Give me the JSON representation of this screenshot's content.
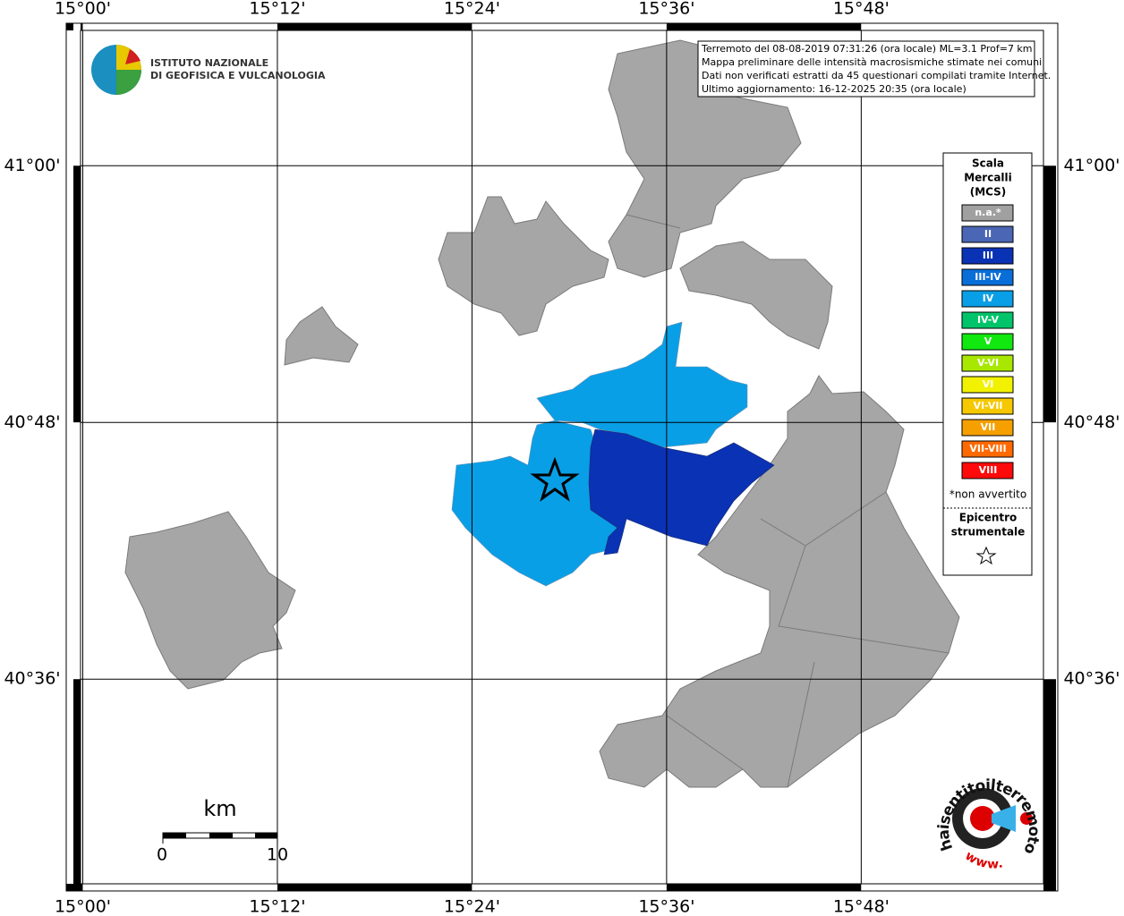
{
  "grid": {
    "xlim": [
      14.983,
      16.002
    ],
    "ylim": [
      40.435,
      41.111
    ],
    "longitudes": [
      {
        "value": 15.0,
        "label": "15°00'"
      },
      {
        "value": 15.2,
        "label": "15°12'"
      },
      {
        "value": 15.4,
        "label": "15°24'"
      },
      {
        "value": 15.6,
        "label": "15°36'"
      },
      {
        "value": 15.8,
        "label": "15°48'"
      }
    ],
    "latitudes": [
      {
        "value": 41.0,
        "label": "41°00'"
      },
      {
        "value": 40.8,
        "label": "40°48'"
      },
      {
        "value": 40.6,
        "label": "40°36'"
      }
    ]
  },
  "info_box": {
    "lines": [
      "Terremoto del 08-08-2019 07:31:26 (ora locale) ML=3.1 Prof=7 km",
      "Mappa preliminare delle intensità macrosismiche stimate nei comuni",
      "Dati non verificati estratti da 45 questionari compilati tramite Internet.",
      "Ultimo aggiornamento: 16-12-2025 20:35 (ora locale)"
    ]
  },
  "logo_ingv": {
    "line1": "ISTITUTO NAZIONALE",
    "line2": "DI GEOFISICA E VULCANOLOGIA"
  },
  "legend": {
    "title_lines": [
      "Scala",
      "Mercalli",
      "(MCS)"
    ],
    "items": [
      {
        "label": "n.a.*",
        "color": "#a0a0a0"
      },
      {
        "label": "II",
        "color": "#4a66b4"
      },
      {
        "label": "III",
        "color": "#0a32b4"
      },
      {
        "label": "III-IV",
        "color": "#0a6ed8"
      },
      {
        "label": "IV",
        "color": "#099fe6"
      },
      {
        "label": "IV-V",
        "color": "#00c46a"
      },
      {
        "label": "V",
        "color": "#10e810"
      },
      {
        "label": "V-VI",
        "color": "#a8e800"
      },
      {
        "label": "VI",
        "color": "#f2f200"
      },
      {
        "label": "VI-VII",
        "color": "#f5c800"
      },
      {
        "label": "VII",
        "color": "#f5a000"
      },
      {
        "label": "VII-VIII",
        "color": "#ff6a00"
      },
      {
        "label": "VIII",
        "color": "#ff0a0a"
      }
    ],
    "note": "*non avvertito",
    "epicenter_lines": [
      "Epicentro",
      "strumentale"
    ]
  },
  "scale_bar": {
    "unit": "km",
    "start": "0",
    "end": "10"
  },
  "logo_hsit": {
    "ring": "haisentitoilterremoto.it",
    "www": "www."
  }
}
